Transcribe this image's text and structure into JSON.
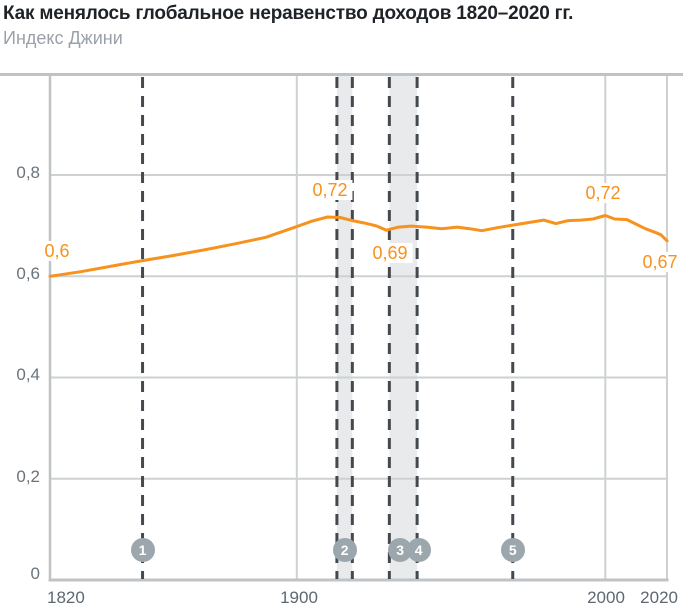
{
  "header": {
    "title": "Как менялось глобальное неравенство доходов 1820–2020 гг.",
    "subtitle": "Индекс Джини"
  },
  "chart_data": {
    "type": "line",
    "title": "Как менялось глобальное неравенство доходов 1820–2020 гг.",
    "ylabel": "Индекс Джини",
    "xlabel": "",
    "xlim": [
      1820,
      2020
    ],
    "ylim": [
      0,
      1.0
    ],
    "grid": true,
    "legend": false,
    "series_name": "Индекс Джини",
    "x": [
      1820,
      1830,
      1840,
      1850,
      1860,
      1870,
      1880,
      1890,
      1900,
      1905,
      1910,
      1914,
      1918,
      1922,
      1926,
      1929,
      1933,
      1937,
      1942,
      1947,
      1952,
      1956,
      1960,
      1965,
      1970,
      1975,
      1980,
      1984,
      1988,
      1992,
      1996,
      2000,
      2003,
      2007,
      2010,
      2013,
      2016,
      2018,
      2020
    ],
    "values": [
      0.6,
      0.609,
      0.62,
      0.631,
      0.641,
      0.652,
      0.664,
      0.677,
      0.698,
      0.709,
      0.717,
      0.716,
      0.71,
      0.705,
      0.699,
      0.691,
      0.697,
      0.699,
      0.697,
      0.694,
      0.697,
      0.694,
      0.69,
      0.696,
      0.701,
      0.706,
      0.711,
      0.704,
      0.71,
      0.711,
      0.713,
      0.72,
      0.713,
      0.712,
      0.703,
      0.694,
      0.687,
      0.682,
      0.67
    ],
    "yticks": [
      {
        "value": 0.8,
        "label": "0,8"
      },
      {
        "value": 0.6,
        "label": "0,6"
      },
      {
        "value": 0.4,
        "label": "0,4"
      },
      {
        "value": 0.2,
        "label": "0,2"
      },
      {
        "value": 0.0,
        "label": "0"
      }
    ],
    "xticks": [
      {
        "year": 1820,
        "label": "1820"
      },
      {
        "year": 1900,
        "label": "1900"
      },
      {
        "year": 2000,
        "label": "2000"
      },
      {
        "year": 2020,
        "label": "2020"
      }
    ],
    "point_labels": [
      {
        "year": 1820,
        "value": 0.6,
        "text": "0,6"
      },
      {
        "year": 1910,
        "value": 0.72,
        "text": "0,72"
      },
      {
        "year": 1929,
        "value": 0.69,
        "text": "0,69"
      },
      {
        "year": 2000,
        "value": 0.72,
        "text": "0,72"
      },
      {
        "year": 2020,
        "value": 0.67,
        "text": "0,67"
      }
    ],
    "event_lines": [
      1850,
      1913,
      1918,
      1930,
      1939,
      1970
    ],
    "event_bands": [
      {
        "from": 1913,
        "to": 1918
      },
      {
        "from": 1930,
        "to": 1939
      }
    ],
    "event_markers": [
      {
        "label": "1",
        "year": 1850
      },
      {
        "label": "2",
        "year": 1915.5
      },
      {
        "label": "3",
        "year": 1933.5
      },
      {
        "label": "4",
        "year": 1939.5
      },
      {
        "label": "5",
        "year": 1970
      }
    ],
    "colors": {
      "line": "#F6921E",
      "label": "#F6921E",
      "band": "#E8EAEB",
      "dashed": "#43494E",
      "marker": "#9CA6AD",
      "grid": "#CED1D2",
      "axis": "#C0C3C5"
    }
  }
}
